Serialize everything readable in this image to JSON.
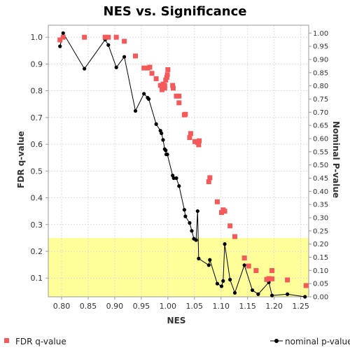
{
  "chart_data": {
    "type": "scatter",
    "title": "NES vs. Significance",
    "xlabel": "NES",
    "ylabel": "FDR q-value",
    "y2label": "Nominal P-value",
    "xlim": [
      0.775,
      1.265
    ],
    "ylim": [
      0.03,
      1.045
    ],
    "y2lim": [
      0.0,
      1.03
    ],
    "x_ticks": [
      "0.80",
      "0.85",
      "0.90",
      "0.95",
      "1.00",
      "1.05",
      "1.10",
      "1.15",
      "1.20",
      "1.25"
    ],
    "y_ticks": [
      "0.1",
      "0.2",
      "0.3",
      "0.4",
      "0.5",
      "0.6",
      "0.7",
      "0.8",
      "0.9",
      "1.0"
    ],
    "y2_ticks": [
      "0.00",
      "0.05",
      "0.10",
      "0.15",
      "0.20",
      "0.25",
      "0.30",
      "0.35",
      "0.40",
      "0.45",
      "0.50",
      "0.55",
      "0.60",
      "0.65",
      "0.70",
      "0.75",
      "0.80",
      "0.85",
      "0.90",
      "0.95",
      "1.00"
    ],
    "grid": true,
    "highlight_band": {
      "y_from": 0.03,
      "y_to": 0.25,
      "color": "#ffff99"
    },
    "colors": {
      "fdr": "#f55a5a",
      "nominal": "#000000",
      "grid": "#dddddd"
    },
    "series": [
      {
        "name": "FDR q-value",
        "axis": "left",
        "style": "square",
        "points": [
          [
            0.797,
            0.99
          ],
          [
            0.803,
            1.0
          ],
          [
            0.843,
            1.0
          ],
          [
            0.882,
            1.0
          ],
          [
            0.888,
            1.0
          ],
          [
            0.903,
            1.0
          ],
          [
            0.918,
            0.985
          ],
          [
            0.939,
            0.93
          ],
          [
            0.955,
            0.885
          ],
          [
            0.962,
            0.885
          ],
          [
            0.966,
            0.888
          ],
          [
            0.97,
            0.865
          ],
          [
            0.978,
            0.845
          ],
          [
            0.986,
            0.82
          ],
          [
            0.989,
            0.804
          ],
          [
            0.991,
            0.825
          ],
          [
            0.994,
            0.82
          ],
          [
            0.996,
            0.84
          ],
          [
            0.998,
            0.85
          ],
          [
            0.999,
            0.86
          ],
          [
            1.0,
            0.879
          ],
          [
            0.994,
            0.81
          ],
          [
            1.009,
            0.82
          ],
          [
            1.01,
            0.81
          ],
          [
            1.016,
            0.78
          ],
          [
            1.021,
            0.78
          ],
          [
            1.021,
            0.755
          ],
          [
            1.031,
            0.71
          ],
          [
            1.033,
            0.712
          ],
          [
            1.041,
            0.625
          ],
          [
            1.043,
            0.64
          ],
          [
            1.051,
            0.61
          ],
          [
            1.056,
            0.607
          ],
          [
            1.058,
            0.598
          ],
          [
            1.059,
            0.613
          ],
          [
            1.077,
            0.46
          ],
          [
            1.079,
            0.475
          ],
          [
            1.093,
            0.385
          ],
          [
            1.101,
            0.345
          ],
          [
            1.104,
            0.355
          ],
          [
            1.107,
            0.35
          ],
          [
            1.117,
            0.295
          ],
          [
            1.126,
            0.255
          ],
          [
            1.144,
            0.175
          ],
          [
            1.152,
            0.145
          ],
          [
            1.166,
            0.128
          ],
          [
            1.186,
            0.095
          ],
          [
            1.19,
            0.098
          ],
          [
            1.196,
            0.128
          ],
          [
            1.196,
            0.097
          ],
          [
            1.225,
            0.093
          ],
          [
            1.26,
            0.072
          ]
        ]
      },
      {
        "name": "nominal p-value",
        "axis": "right",
        "style": "line-dot",
        "points": [
          [
            0.797,
            0.95
          ],
          [
            0.803,
            1.0
          ],
          [
            0.843,
            0.865
          ],
          [
            0.882,
            0.975
          ],
          [
            0.888,
            0.955
          ],
          [
            0.903,
            0.87
          ],
          [
            0.918,
            0.91
          ],
          [
            0.939,
            0.705
          ],
          [
            0.955,
            0.77
          ],
          [
            0.962,
            0.755
          ],
          [
            0.964,
            0.75
          ],
          [
            0.978,
            0.655
          ],
          [
            0.986,
            0.63
          ],
          [
            0.988,
            0.62
          ],
          [
            0.991,
            0.595
          ],
          [
            0.994,
            0.56
          ],
          [
            0.996,
            0.555
          ],
          [
            0.997,
            0.54
          ],
          [
            0.999,
            0.54
          ],
          [
            1.009,
            0.46
          ],
          [
            1.011,
            0.45
          ],
          [
            1.016,
            0.45
          ],
          [
            1.021,
            0.42
          ],
          [
            1.031,
            0.33
          ],
          [
            1.033,
            0.305
          ],
          [
            1.041,
            0.28
          ],
          [
            1.045,
            0.25
          ],
          [
            1.049,
            0.22
          ],
          [
            1.053,
            0.215
          ],
          [
            1.056,
            0.325
          ],
          [
            1.058,
            0.145
          ],
          [
            1.077,
            0.12
          ],
          [
            1.079,
            0.14
          ],
          [
            1.093,
            0.05
          ],
          [
            1.101,
            0.04
          ],
          [
            1.104,
            0.06
          ],
          [
            1.107,
            0.2
          ],
          [
            1.117,
            0.065
          ],
          [
            1.126,
            0.015
          ],
          [
            1.144,
            0.12
          ],
          [
            1.159,
            0.025
          ],
          [
            1.17,
            0.01
          ],
          [
            1.19,
            0.055
          ],
          [
            1.196,
            0.005
          ],
          [
            1.225,
            0.01
          ],
          [
            1.258,
            0.0
          ]
        ]
      }
    ],
    "legend": {
      "placement": "bottom",
      "items": [
        "FDR q-value",
        "nominal p-value"
      ]
    }
  }
}
